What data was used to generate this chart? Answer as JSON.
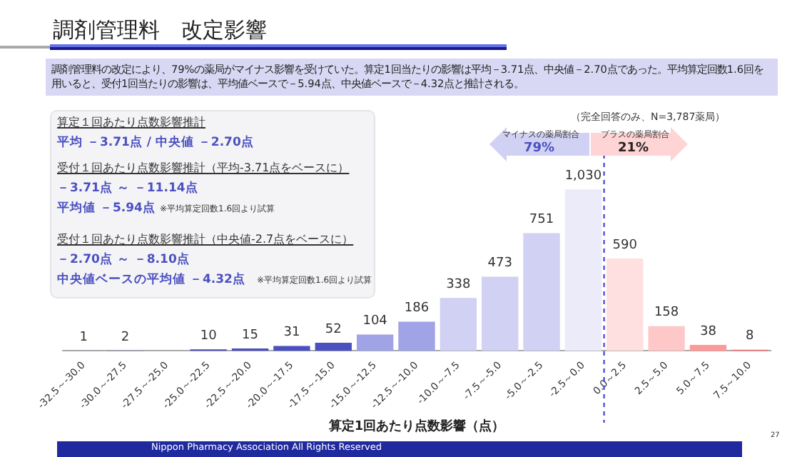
{
  "chart_data": {
    "type": "bar",
    "title": "調剤管理料　改定影響",
    "subtitle": "調剤管理料の改定により、79%の薬局がマイナス影響を受けていた。算定1回当たりの影響は平均－3.71点、中央値－2.70点であった。平均算定回数1.6回を用いると、受付1回当たりの影響は、平均値ベースで－5.94点、中央値ベースで－4.32点と推計される。",
    "xlabel": "算定1回あたり点数影響（点）",
    "categories": [
      "-32.5～-30.0",
      "-30.0～-27.5",
      "-27.5～-25.0",
      "-25.0～-22.5",
      "-22.5～-20.0",
      "-20.0～-17.5",
      "-17.5～-15.0",
      "-15.0～-12.5",
      "-12.5～-10.0",
      "-10.0～-7.5",
      "-7.5～-5.0",
      "-5.0～-2.5",
      "-2.5～0.0",
      "0.0～2.5",
      "2.5～5.0",
      "5.0～7.5",
      "7.5～10.0"
    ],
    "values": [
      1,
      2,
      null,
      10,
      15,
      31,
      52,
      104,
      186,
      338,
      473,
      751,
      1030,
      590,
      158,
      38,
      8
    ],
    "colors": [
      "#4a50c0",
      "#4a50c0",
      "#4a50c0",
      "#4a50c0",
      "#4a50c0",
      "#4a50c0",
      "#4a50c0",
      "#a0a3e6",
      "#a0a3e6",
      "#d0d1f3",
      "#d0d1f3",
      "#d0d1f3",
      "#ebebfa",
      "#ffe0e0",
      "#ffc8c8",
      "#ff9999",
      "#ff7070"
    ],
    "value_labels": [
      "1",
      "2",
      null,
      "10",
      "15",
      "31",
      "52",
      "104",
      "186",
      "338",
      "473",
      "751",
      "1,030",
      "590",
      "158",
      "38",
      "8"
    ],
    "ref_lines": [
      {
        "axis": "x",
        "value": "0.0～2.5",
        "color": "#3333cc",
        "line_style": "dashed"
      }
    ],
    "annotations": [
      "算定１回あたり点数影響推計",
      "平均 －3.71点 / 中央値 －2.70点",
      "受付１回あたり点数影響推計（平均-3.71点をベースに）",
      "－3.71点 ～ －11.14点",
      "平均値 －5.94点",
      "※平均算定回数1.6回より試算",
      "受付１回あたり点数影響推計（中央値-2.7点をベースに）",
      "－2.70点 ～ －8.10点",
      "中央値ベースの平均値 －4.32点",
      "※平均算定回数1.6回より試算",
      "（完全回答のみ、N=3,787薬局）",
      "マイナスの薬局割合",
      "79%",
      "プラスの薬局割合",
      "21%",
      "Nippon Pharmacy Association All Rights Reserved",
      "27"
    ],
    "legend": false
  }
}
